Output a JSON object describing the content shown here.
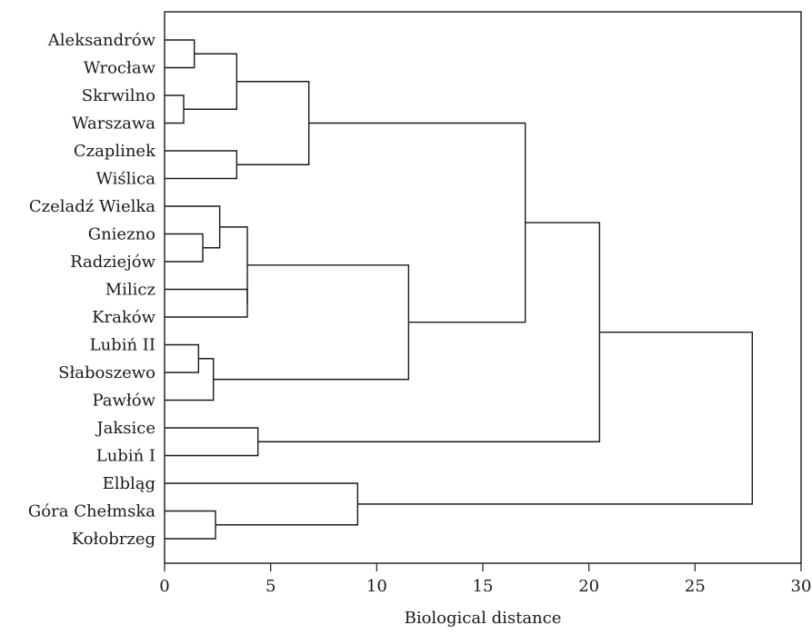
{
  "chart_data": {
    "type": "dendrogram",
    "title": "",
    "xlabel": "Biological distance",
    "ylabel": "",
    "xlim": [
      0,
      30
    ],
    "xticks": [
      0,
      5,
      10,
      15,
      20,
      25,
      30
    ],
    "grid": false,
    "legend": "none",
    "leaves": [
      "Aleksandrów",
      "Wrocław",
      "Skrwilno",
      "Warszawa",
      "Czaplinek",
      "Wiślica",
      "Czeladź Wielka",
      "Gniezno",
      "Radziejów",
      "Milicz",
      "Kraków",
      "Lubiń II",
      "Słaboszewo",
      "Pawłów",
      "Jaksice",
      "Lubiń I",
      "Elbląg",
      "Góra Chełmska",
      "Kołobrzeg"
    ],
    "merges": [
      {
        "id": "c1",
        "children": [
          "Aleksandrów",
          "Wrocław"
        ],
        "distance": 1.4
      },
      {
        "id": "c2",
        "children": [
          "Skrwilno",
          "Warszawa"
        ],
        "distance": 0.9
      },
      {
        "id": "c3",
        "children": [
          "c1",
          "c2"
        ],
        "distance": 3.4
      },
      {
        "id": "c4",
        "children": [
          "Czaplinek",
          "Wiślica"
        ],
        "distance": 3.4
      },
      {
        "id": "c5",
        "children": [
          "c3",
          "c4"
        ],
        "distance": 6.8
      },
      {
        "id": "c6",
        "children": [
          "Gniezno",
          "Radziejów"
        ],
        "distance": 1.8
      },
      {
        "id": "c7",
        "children": [
          "Czeladź Wielka",
          "c6"
        ],
        "distance": 2.6
      },
      {
        "id": "c8",
        "children": [
          "Milicz",
          "Kraków"
        ],
        "distance": 3.9
      },
      {
        "id": "c9",
        "children": [
          "c7",
          "c8"
        ],
        "distance": 3.9
      },
      {
        "id": "c10",
        "children": [
          "Lubiń II",
          "Słaboszewo"
        ],
        "distance": 1.6
      },
      {
        "id": "c11",
        "children": [
          "c10",
          "Pawłów"
        ],
        "distance": 2.3
      },
      {
        "id": "c12",
        "children": [
          "c9",
          "c11"
        ],
        "distance": 11.5
      },
      {
        "id": "c13",
        "children": [
          "c5",
          "c12"
        ],
        "distance": 17.0
      },
      {
        "id": "c14",
        "children": [
          "Jaksice",
          "Lubiń I"
        ],
        "distance": 4.4
      },
      {
        "id": "c15",
        "children": [
          "c13",
          "c14"
        ],
        "distance": 20.5
      },
      {
        "id": "c16",
        "children": [
          "Góra Chełmska",
          "Kołobrzeg"
        ],
        "distance": 2.4
      },
      {
        "id": "c17",
        "children": [
          "Elbląg",
          "c16"
        ],
        "distance": 9.1
      },
      {
        "id": "c18",
        "children": [
          "c15",
          "c17"
        ],
        "distance": 27.7
      }
    ]
  }
}
